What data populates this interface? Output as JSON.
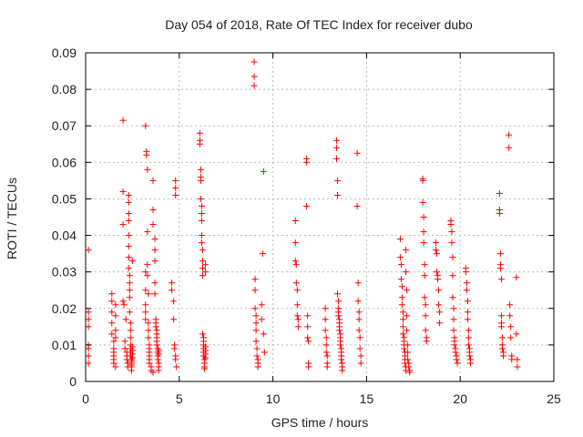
{
  "chart_data": {
    "type": "scatter",
    "title": "Day 054 of 2018, Rate Of TEC Index for receiver dubo",
    "xlabel": "GPS time / hours",
    "ylabel": "ROTI / TECUs",
    "xlim": [
      0,
      25
    ],
    "ylim": [
      0,
      0.09
    ],
    "xticks": [
      "0",
      "5",
      "10",
      "15",
      "20",
      "25"
    ],
    "yticks": [
      "0",
      "0.01",
      "0.02",
      "0.03",
      "0.04",
      "0.05",
      "0.06",
      "0.07",
      "0.08",
      "0.09"
    ],
    "grid": true,
    "marker": "+",
    "color": "#ff0000",
    "series": [
      {
        "x": [
          0.15,
          0.15,
          0.15,
          0.15,
          0.15,
          0.15,
          0.15,
          0.15,
          1.4,
          1.4,
          1.4,
          1.4,
          1.4,
          1.5,
          1.5,
          1.5,
          1.5,
          1.5,
          1.5,
          1.6,
          1.6,
          1.6,
          1.6,
          1.6,
          2.0,
          2.0,
          2.0,
          2.0,
          2.05,
          2.1,
          2.1,
          2.15,
          2.2,
          2.2,
          2.2,
          2.25,
          2.25,
          2.3,
          2.3,
          2.3,
          2.3,
          2.3,
          2.3,
          2.3,
          2.3,
          2.35,
          2.35,
          2.35,
          2.35,
          2.35,
          2.4,
          2.4,
          2.4,
          2.4,
          2.4,
          2.4,
          2.4,
          2.45,
          2.45,
          2.45,
          2.45,
          2.45,
          2.45,
          2.5,
          2.5,
          2.5,
          2.5,
          2.5,
          3.2,
          3.2,
          3.2,
          3.2,
          3.2,
          3.2,
          3.25,
          3.25,
          3.3,
          3.3,
          3.3,
          3.3,
          3.35,
          3.35,
          3.35,
          3.35,
          3.4,
          3.4,
          3.4,
          3.4,
          3.4,
          3.4,
          3.5,
          3.5,
          3.6,
          3.6,
          3.6,
          3.6,
          3.7,
          3.7,
          3.7,
          3.7,
          3.7,
          3.75,
          3.75,
          3.75,
          3.8,
          3.8,
          3.8,
          3.8,
          3.8,
          3.85,
          3.85,
          3.85,
          3.85,
          3.9,
          3.9,
          3.9,
          3.9,
          3.9,
          4.6,
          4.6,
          4.7,
          4.7,
          4.75,
          4.75,
          4.8,
          4.8,
          4.8,
          4.8,
          4.8,
          4.85,
          6.1,
          6.1,
          6.1,
          6.15,
          6.15,
          6.15,
          6.15,
          6.2,
          6.2,
          6.2,
          6.2,
          6.2,
          6.25,
          6.25,
          6.25,
          6.25,
          6.25,
          6.3,
          6.3,
          6.3,
          6.3,
          6.3,
          6.3,
          6.35,
          6.35,
          6.35,
          6.35,
          6.4,
          6.4,
          6.4,
          6.4,
          6.4,
          6.4,
          9.0,
          9.0,
          9.0,
          9.05,
          9.05,
          9.05,
          9.1,
          9.1,
          9.1,
          9.1,
          9.15,
          9.15,
          9.2,
          9.2,
          9.2,
          9.4,
          9.4,
          9.45,
          9.5,
          9.5,
          9.55,
          11.2,
          11.2,
          11.2,
          11.25,
          11.25,
          11.3,
          11.3,
          11.3,
          11.35,
          11.35,
          11.8,
          11.8,
          11.8,
          11.85,
          11.85,
          11.85,
          11.9,
          11.9,
          11.9,
          12.8,
          12.8,
          12.8,
          12.85,
          12.85,
          12.85,
          12.9,
          12.9,
          12.9,
          13.4,
          13.4,
          13.4,
          13.45,
          13.45,
          13.45,
          13.5,
          13.5,
          13.5,
          13.5,
          13.55,
          13.55,
          13.55,
          13.55,
          13.6,
          13.6,
          13.6,
          13.6,
          13.65,
          13.65,
          13.65,
          13.65,
          13.7,
          13.7,
          13.7,
          14.5,
          14.5,
          14.55,
          14.55,
          14.6,
          14.6,
          14.6,
          14.65,
          14.65,
          14.7,
          14.7,
          16.8,
          16.8,
          16.85,
          16.85,
          16.9,
          16.9,
          16.9,
          16.95,
          16.95,
          16.95,
          16.95,
          17.0,
          17.0,
          17.0,
          17.0,
          17.05,
          17.05,
          17.05,
          17.05,
          17.1,
          17.1,
          17.1,
          17.1,
          17.15,
          17.15,
          17.15,
          17.2,
          17.2,
          17.2,
          17.25,
          17.25,
          17.3,
          17.3,
          18.0,
          18.0,
          18.0,
          18.05,
          18.05,
          18.05,
          18.1,
          18.1,
          18.1,
          18.15,
          18.15,
          18.15,
          18.2,
          18.2,
          18.7,
          18.7,
          18.75,
          18.75,
          18.8,
          18.8,
          18.85,
          18.85,
          18.9,
          18.9,
          19.5,
          19.5,
          19.55,
          19.55,
          19.6,
          19.6,
          19.6,
          19.65,
          19.65,
          19.65,
          19.7,
          19.7,
          19.7,
          19.75,
          19.75,
          19.8,
          19.8,
          19.85,
          20.3,
          20.3,
          20.35,
          20.35,
          20.4,
          20.4,
          20.4,
          20.45,
          20.45,
          20.45,
          20.5,
          20.5,
          20.5,
          20.55,
          20.55,
          22.1,
          22.1,
          22.1,
          22.15,
          22.15,
          22.15,
          22.2,
          22.2,
          22.2,
          22.2,
          22.25,
          22.25,
          22.25,
          22.3,
          22.3,
          22.6,
          22.6,
          22.65,
          22.65,
          22.7,
          22.7,
          22.75,
          22.75,
          23.0,
          23.0,
          23.05,
          23.05
        ],
        "y": [
          0.036,
          0.019,
          0.017,
          0.015,
          0.01,
          0.009,
          0.007,
          0.005,
          0.024,
          0.022,
          0.019,
          0.016,
          0.013,
          0.011,
          0.009,
          0.008,
          0.007,
          0.006,
          0.005,
          0.004,
          0.021,
          0.018,
          0.014,
          0.012,
          0.0715,
          0.052,
          0.043,
          0.022,
          0.021,
          0.011,
          0.009,
          0.017,
          0.008,
          0.007,
          0.006,
          0.005,
          0.004,
          0.051,
          0.049,
          0.046,
          0.044,
          0.04,
          0.037,
          0.034,
          0.031,
          0.029,
          0.027,
          0.025,
          0.023,
          0.019,
          0.016,
          0.014,
          0.012,
          0.01,
          0.009,
          0.008,
          0.007,
          0.006,
          0.005,
          0.004,
          0.003,
          0.0045,
          0.0055,
          0.0065,
          0.0075,
          0.0085,
          0.0095,
          0.033,
          0.03,
          0.025,
          0.021,
          0.019,
          0.017,
          0.07,
          0.063,
          0.062,
          0.058,
          0.041,
          0.032,
          0.029,
          0.024,
          0.016,
          0.014,
          0.012,
          0.01,
          0.009,
          0.008,
          0.007,
          0.006,
          0.005,
          0.004,
          0.003,
          0.0025,
          0.055,
          0.047,
          0.043,
          0.039,
          0.036,
          0.033,
          0.027,
          0.024,
          0.017,
          0.016,
          0.015,
          0.014,
          0.013,
          0.012,
          0.011,
          0.01,
          0.009,
          0.008,
          0.007,
          0.006,
          0.005,
          0.004,
          0.003,
          0.0085,
          0.0075,
          0.027,
          0.025,
          0.022,
          0.017,
          0.01,
          0.009,
          0.055,
          0.053,
          0.051,
          0.007,
          0.006,
          0.004,
          0.068,
          0.066,
          0.065,
          0.058,
          0.056,
          0.055,
          0.05,
          0.048,
          0.046,
          0.044,
          0.04,
          0.038,
          0.036,
          0.033,
          0.031,
          0.029,
          0.013,
          0.012,
          0.011,
          0.01,
          0.009,
          0.008,
          0.007,
          0.006,
          0.005,
          0.004,
          0.0035,
          0.032,
          0.03,
          0.0095,
          0.0085,
          0.0075,
          0.0065,
          0.0875,
          0.0835,
          0.081,
          0.028,
          0.025,
          0.02,
          0.018,
          0.016,
          0.014,
          0.011,
          0.009,
          0.007,
          0.006,
          0.005,
          0.004,
          0.021,
          0.017,
          0.035,
          0.0575,
          0.013,
          0.008,
          0.044,
          0.038,
          0.033,
          0.032,
          0.027,
          0.025,
          0.021,
          0.018,
          0.017,
          0.015,
          0.061,
          0.06,
          0.048,
          0.018,
          0.015,
          0.012,
          0.011,
          0.005,
          0.004,
          0.02,
          0.017,
          0.014,
          0.012,
          0.01,
          0.008,
          0.007,
          0.005,
          0.004,
          0.066,
          0.064,
          0.061,
          0.055,
          0.051,
          0.024,
          0.022,
          0.02,
          0.019,
          0.018,
          0.017,
          0.016,
          0.015,
          0.014,
          0.013,
          0.012,
          0.011,
          0.01,
          0.009,
          0.008,
          0.007,
          0.006,
          0.005,
          0.004,
          0.003,
          0.0625,
          0.048,
          0.027,
          0.022,
          0.019,
          0.017,
          0.014,
          0.012,
          0.009,
          0.007,
          0.005,
          0.039,
          0.034,
          0.032,
          0.028,
          0.026,
          0.023,
          0.021,
          0.019,
          0.017,
          0.015,
          0.013,
          0.012,
          0.011,
          0.01,
          0.009,
          0.008,
          0.007,
          0.006,
          0.005,
          0.004,
          0.003,
          0.036,
          0.03,
          0.025,
          0.018,
          0.014,
          0.01,
          0.008,
          0.006,
          0.005,
          0.004,
          0.003,
          0.0025,
          0.0555,
          0.055,
          0.049,
          0.045,
          0.041,
          0.038,
          0.032,
          0.029,
          0.023,
          0.021,
          0.018,
          0.014,
          0.012,
          0.011,
          0.038,
          0.036,
          0.035,
          0.03,
          0.029,
          0.028,
          0.025,
          0.021,
          0.019,
          0.016,
          0.044,
          0.043,
          0.041,
          0.038,
          0.034,
          0.029,
          0.023,
          0.02,
          0.017,
          0.014,
          0.012,
          0.011,
          0.01,
          0.009,
          0.008,
          0.007,
          0.006,
          0.005,
          0.031,
          0.03,
          0.027,
          0.025,
          0.022,
          0.019,
          0.017,
          0.014,
          0.012,
          0.01,
          0.009,
          0.008,
          0.007,
          0.006,
          0.005,
          0.0515,
          0.047,
          0.046,
          0.035,
          0.032,
          0.031,
          0.028,
          0.018,
          0.016,
          0.015,
          0.012,
          0.01,
          0.009,
          0.008,
          0.007,
          0.0675,
          0.064,
          0.021,
          0.018,
          0.015,
          0.012,
          0.007,
          0.006,
          0.0285,
          0.013,
          0.006,
          0.004
        ]
      }
    ]
  }
}
